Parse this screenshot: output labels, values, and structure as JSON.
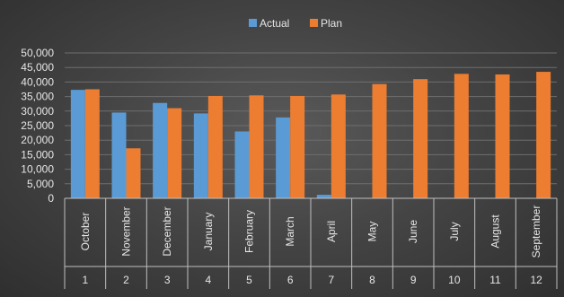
{
  "chart_data": {
    "type": "bar",
    "categories": [
      "October",
      "November",
      "December",
      "January",
      "February",
      "March",
      "April",
      "May",
      "June",
      "July",
      "August",
      "September"
    ],
    "outer_categories": [
      "1",
      "2",
      "3",
      "4",
      "5",
      "6",
      "7",
      "8",
      "9",
      "10",
      "11",
      "12"
    ],
    "series": [
      {
        "name": "Actual",
        "color": "#5b9bd5",
        "values": [
          37300,
          29500,
          32800,
          29200,
          23000,
          27800,
          1200,
          null,
          null,
          null,
          null,
          null
        ]
      },
      {
        "name": "Plan",
        "color": "#ed7d31",
        "values": [
          37500,
          17200,
          31000,
          35200,
          35400,
          35200,
          35700,
          39300,
          41000,
          42800,
          42600,
          43500
        ]
      }
    ],
    "y_ticks": [
      "0",
      "5,000",
      "10,000",
      "15,000",
      "20,000",
      "25,000",
      "30,000",
      "35,000",
      "40,000",
      "45,000",
      "50,000"
    ],
    "ylim": [
      0,
      50000
    ],
    "grid": true,
    "legend_position": "top-center"
  }
}
